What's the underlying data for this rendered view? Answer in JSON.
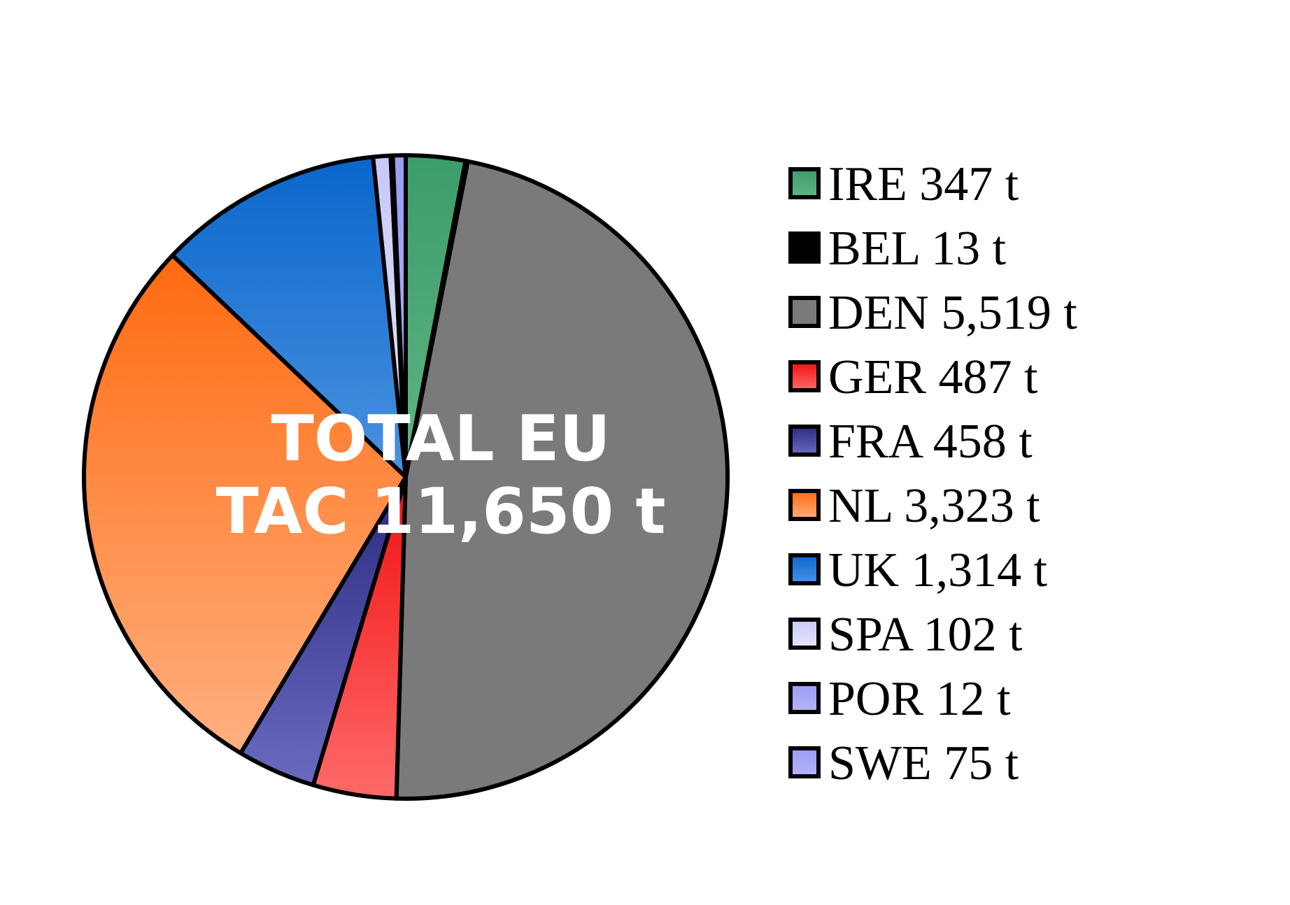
{
  "chart_data": {
    "type": "pie",
    "center_label": [
      "TOTAL EU",
      "TAC 11,650 t"
    ],
    "legend_placement": "right",
    "slices": [
      {
        "name": "IRE",
        "value": 347,
        "label": "IRE 347 t",
        "color": "#3c9c6a",
        "color_light": "#5fb585"
      },
      {
        "name": "BEL",
        "value": 13,
        "label": "BEL 13 t",
        "color": "#000000",
        "color_light": "#000000"
      },
      {
        "name": "DEN",
        "value": 5519,
        "label": "DEN 5,519 t",
        "color": "#7a7a7a",
        "color_light": "#7a7a7a"
      },
      {
        "name": "GER",
        "value": 487,
        "label": "GER 487 t",
        "color": "#f01010",
        "color_light": "#ff6a6a"
      },
      {
        "name": "FRA",
        "value": 458,
        "label": "FRA 458 t",
        "color": "#2a2a80",
        "color_light": "#6a6ac0"
      },
      {
        "name": "NL",
        "value": 3323,
        "label": "NL 3,323 t",
        "color": "#ff6a10",
        "color_light": "#ffb080"
      },
      {
        "name": "UK",
        "value": 1314,
        "label": "UK 1,314 t",
        "color": "#0a66cc",
        "color_light": "#4b92e0"
      },
      {
        "name": "SPA",
        "value": 102,
        "label": "SPA 102 t",
        "color": "#c8c8f8",
        "color_light": "#e6e6fc"
      },
      {
        "name": "POR",
        "value": 12,
        "label": "POR 12 t",
        "color": "#9c9cf4",
        "color_light": "#b4b4f8"
      },
      {
        "name": "SWE",
        "value": 75,
        "label": "SWE 75 t",
        "color": "#9c9cf4",
        "color_light": "#b4b4f8"
      }
    ]
  }
}
